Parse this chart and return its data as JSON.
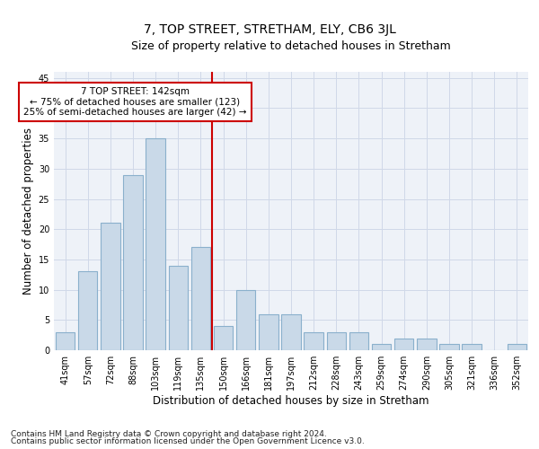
{
  "title": "7, TOP STREET, STRETHAM, ELY, CB6 3JL",
  "subtitle": "Size of property relative to detached houses in Stretham",
  "xlabel": "Distribution of detached houses by size in Stretham",
  "ylabel": "Number of detached properties",
  "bin_labels": [
    "41sqm",
    "57sqm",
    "72sqm",
    "88sqm",
    "103sqm",
    "119sqm",
    "135sqm",
    "150sqm",
    "166sqm",
    "181sqm",
    "197sqm",
    "212sqm",
    "228sqm",
    "243sqm",
    "259sqm",
    "274sqm",
    "290sqm",
    "305sqm",
    "321sqm",
    "336sqm",
    "352sqm"
  ],
  "bar_values": [
    3,
    13,
    21,
    29,
    35,
    14,
    17,
    4,
    10,
    6,
    6,
    3,
    3,
    3,
    1,
    2,
    2,
    1,
    1,
    0,
    1
  ],
  "bar_color": "#c9d9e8",
  "bar_edge_color": "#8ab0cc",
  "vline_x": 6.5,
  "vline_color": "#cc0000",
  "annotation_text": "7 TOP STREET: 142sqm\n← 75% of detached houses are smaller (123)\n25% of semi-detached houses are larger (42) →",
  "annotation_box_color": "#ffffff",
  "annotation_box_edge": "#cc0000",
  "ylim": [
    0,
    46
  ],
  "yticks": [
    0,
    5,
    10,
    15,
    20,
    25,
    30,
    35,
    40,
    45
  ],
  "grid_color": "#d0d8e8",
  "bg_color": "#eef2f8",
  "footer_line1": "Contains HM Land Registry data © Crown copyright and database right 2024.",
  "footer_line2": "Contains public sector information licensed under the Open Government Licence v3.0.",
  "title_fontsize": 10,
  "subtitle_fontsize": 9,
  "axis_label_fontsize": 8.5,
  "tick_fontsize": 7,
  "annotation_fontsize": 7.5,
  "footer_fontsize": 6.5
}
